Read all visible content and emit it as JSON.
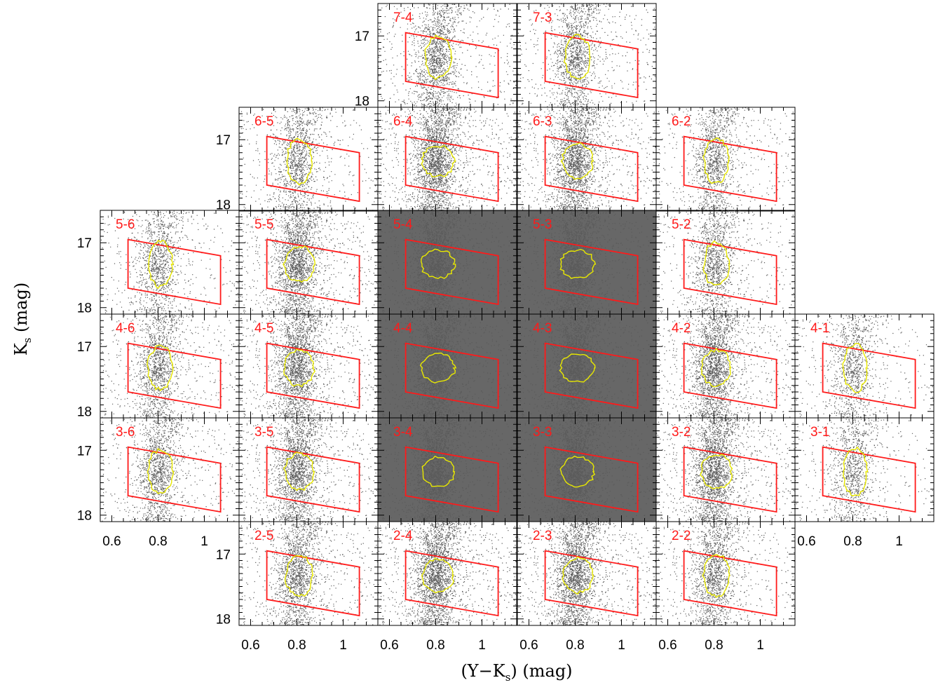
{
  "chart_data": {
    "type": "scatter",
    "xlabel_main": "(Y−K",
    "xlabel_sub": "s",
    "xlabel_tail": ") (mag)",
    "ylabel_main": "K",
    "ylabel_sub": "s",
    "ylabel_tail": " (mag)",
    "xlim": [
      0.55,
      1.15
    ],
    "ylim": [
      18.1,
      16.5
    ],
    "x_tick_values": [
      0.6,
      0.8,
      1.0
    ],
    "x_tick_labels": [
      "0.6",
      "0.8",
      "1"
    ],
    "y_tick_values": [
      17,
      18
    ],
    "y_tick_labels": [
      "17",
      "18"
    ],
    "colors": {
      "points": "#5a5a5a",
      "selection_box": "#ff1a1a",
      "contour": "#e8e800",
      "label": "#ff1a1a",
      "frame": "#000000"
    },
    "panels": [
      {
        "label": "7-4",
        "row": 7,
        "col": 4,
        "density": 0.45
      },
      {
        "label": "7-3",
        "row": 7,
        "col": 3,
        "density": 0.4
      },
      {
        "label": "6-5",
        "row": 6,
        "col": 5,
        "density": 0.35
      },
      {
        "label": "6-4",
        "row": 6,
        "col": 4,
        "density": 0.9
      },
      {
        "label": "6-3",
        "row": 6,
        "col": 3,
        "density": 0.75
      },
      {
        "label": "6-2",
        "row": 6,
        "col": 2,
        "density": 0.35
      },
      {
        "label": "5-6",
        "row": 5,
        "col": 6,
        "density": 0.3
      },
      {
        "label": "5-5",
        "row": 5,
        "col": 5,
        "density": 0.7
      },
      {
        "label": "5-4",
        "row": 5,
        "col": 4,
        "density": 1.0
      },
      {
        "label": "5-3",
        "row": 5,
        "col": 3,
        "density": 1.0
      },
      {
        "label": "5-2",
        "row": 5,
        "col": 2,
        "density": 0.35
      },
      {
        "label": "4-6",
        "row": 4,
        "col": 6,
        "density": 0.4
      },
      {
        "label": "4-5",
        "row": 4,
        "col": 5,
        "density": 0.7
      },
      {
        "label": "4-4",
        "row": 4,
        "col": 4,
        "density": 1.0
      },
      {
        "label": "4-3",
        "row": 4,
        "col": 3,
        "density": 1.0
      },
      {
        "label": "4-2",
        "row": 4,
        "col": 2,
        "density": 0.7
      },
      {
        "label": "4-1",
        "row": 4,
        "col": 1,
        "density": 0.25
      },
      {
        "label": "3-6",
        "row": 3,
        "col": 6,
        "density": 0.4
      },
      {
        "label": "3-5",
        "row": 3,
        "col": 5,
        "density": 0.65
      },
      {
        "label": "3-4",
        "row": 3,
        "col": 4,
        "density": 0.95
      },
      {
        "label": "3-3",
        "row": 3,
        "col": 3,
        "density": 0.95
      },
      {
        "label": "3-2",
        "row": 3,
        "col": 2,
        "density": 0.75
      },
      {
        "label": "3-1",
        "row": 3,
        "col": 1,
        "density": 0.25
      },
      {
        "label": "2-5",
        "row": 2,
        "col": 5,
        "density": 0.5
      },
      {
        "label": "2-4",
        "row": 2,
        "col": 4,
        "density": 0.8
      },
      {
        "label": "2-3",
        "row": 2,
        "col": 3,
        "density": 0.75
      },
      {
        "label": "2-2",
        "row": 2,
        "col": 2,
        "density": 0.45
      }
    ]
  }
}
